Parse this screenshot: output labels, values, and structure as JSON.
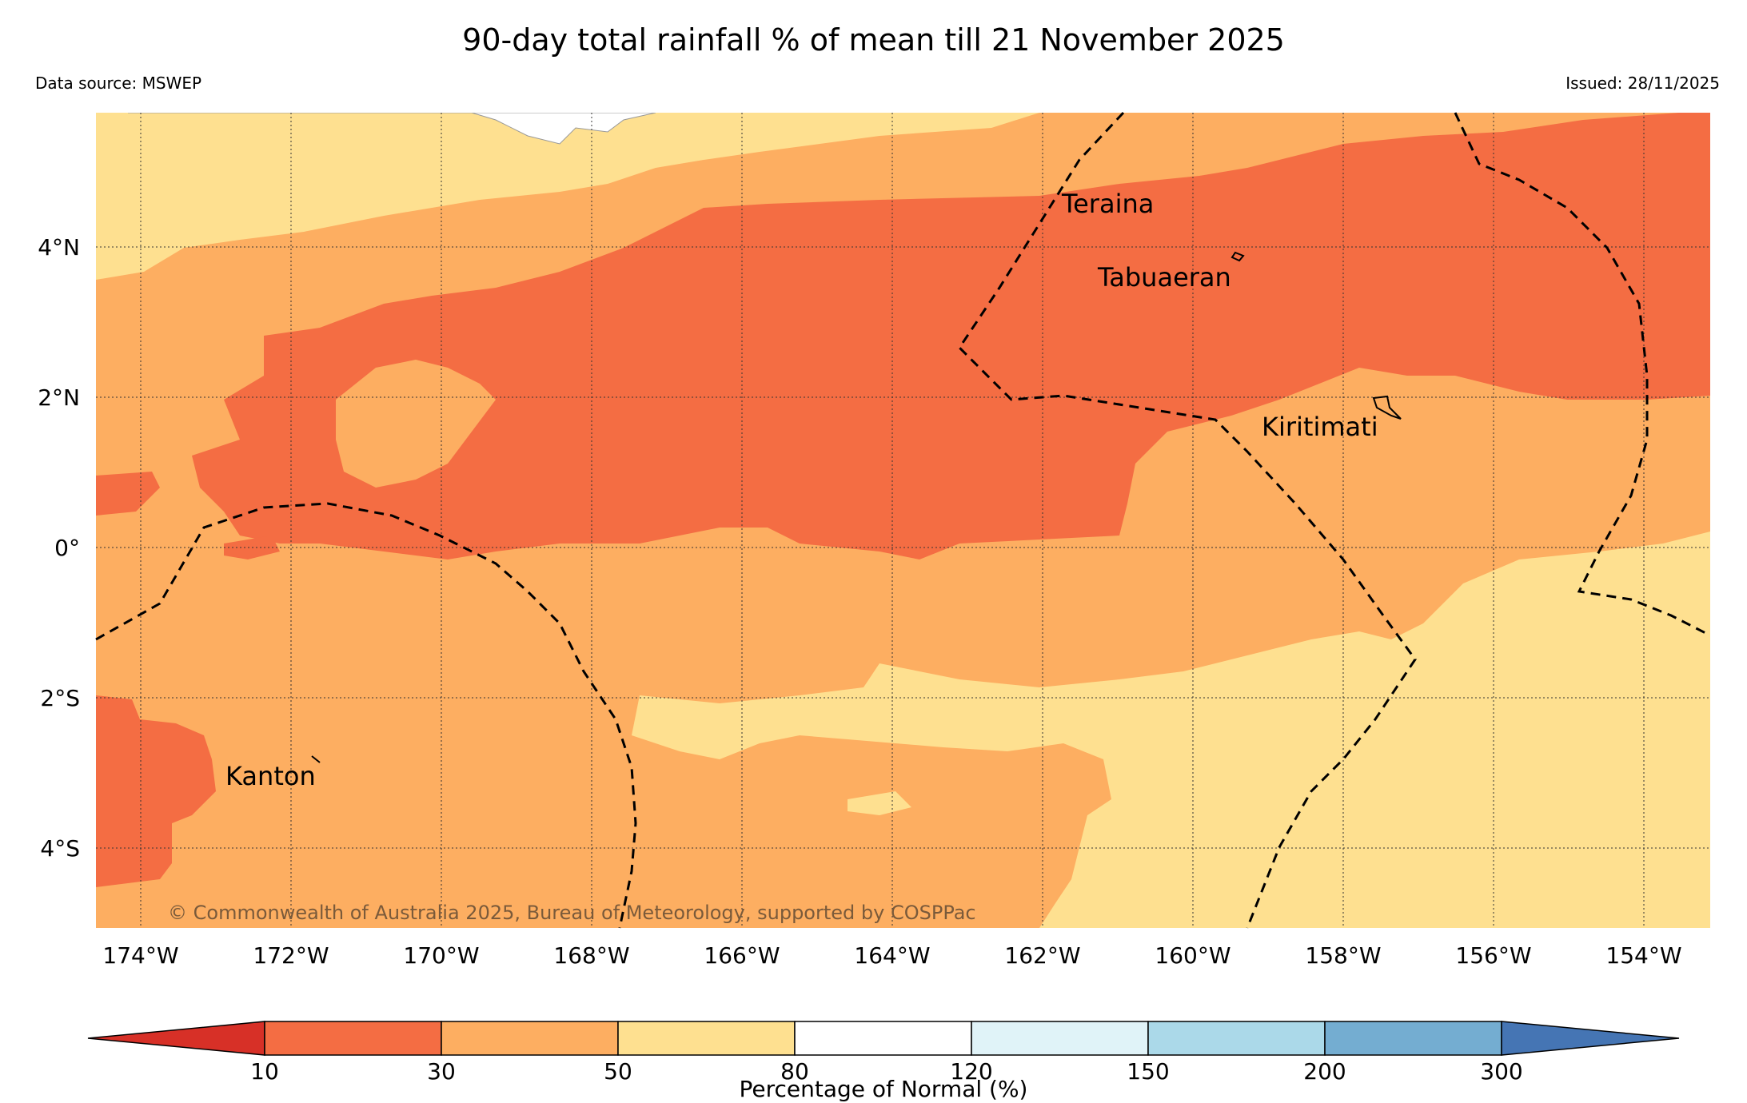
{
  "title": "90-day total rainfall % of mean till 21 November 2025",
  "source": "Data source: MSWEP",
  "issued": "Issued: 28/11/2025",
  "copyright": "© Commonwealth of Australia 2025, Bureau of Meteorology, supported by COSPPac",
  "map": {
    "lon_ticks": [
      "174°W",
      "172°W",
      "170°W",
      "168°W",
      "166°W",
      "164°W",
      "162°W",
      "160°W",
      "158°W",
      "156°W",
      "154°W"
    ],
    "lat_ticks": [
      "4°N",
      "2°N",
      "0°",
      "2°S",
      "4°S"
    ],
    "places": [
      "Teraina",
      "Tabuaeran",
      "Kiritimati",
      "Kanton"
    ]
  },
  "legend": {
    "label": "Percentage of Normal (%)",
    "ticks": [
      "10",
      "30",
      "50",
      "80",
      "120",
      "150",
      "200",
      "300"
    ],
    "colors": [
      "#d73027",
      "#f46d43",
      "#fdae61",
      "#fee090",
      "#ffffff",
      "#e0f3f8",
      "#abd9e9",
      "#74add1",
      "#4575b4"
    ]
  }
}
